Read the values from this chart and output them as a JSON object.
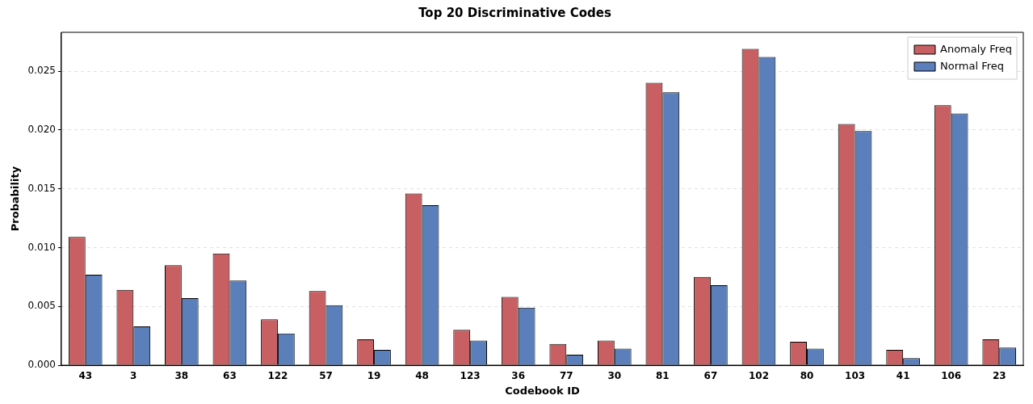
{
  "chart_data": {
    "type": "bar",
    "title": "Top 20 Discriminative Codes",
    "xlabel": "Codebook ID",
    "ylabel": "Probability",
    "categories": [
      "43",
      "3",
      "38",
      "63",
      "122",
      "57",
      "19",
      "48",
      "123",
      "36",
      "77",
      "30",
      "81",
      "67",
      "102",
      "80",
      "103",
      "41",
      "106",
      "23"
    ],
    "series": [
      {
        "name": "Anomaly Freq",
        "color": "#c85f62",
        "values": [
          0.0109,
          0.0064,
          0.0085,
          0.0095,
          0.0039,
          0.0063,
          0.0022,
          0.0146,
          0.003,
          0.0058,
          0.0018,
          0.0021,
          0.024,
          0.0075,
          0.0269,
          0.002,
          0.0205,
          0.0013,
          0.0221,
          0.0022
        ]
      },
      {
        "name": "Normal Freq",
        "color": "#5a7fbb",
        "values": [
          0.0077,
          0.0033,
          0.0057,
          0.0072,
          0.0027,
          0.0051,
          0.0013,
          0.0136,
          0.0021,
          0.0049,
          0.0009,
          0.0014,
          0.0232,
          0.0068,
          0.0262,
          0.0014,
          0.0199,
          0.0006,
          0.0214,
          0.0015
        ]
      }
    ],
    "ylim": [
      0,
      0.0283
    ],
    "yticks": [
      {
        "value": 0,
        "label": "0.000"
      },
      {
        "value": 0.005,
        "label": "0.005"
      },
      {
        "value": 0.01,
        "label": "0.010"
      },
      {
        "value": 0.015,
        "label": "0.015"
      },
      {
        "value": 0.02,
        "label": "0.020"
      },
      {
        "value": 0.025,
        "label": "0.025"
      }
    ],
    "grid": "y",
    "legend": "top right"
  }
}
